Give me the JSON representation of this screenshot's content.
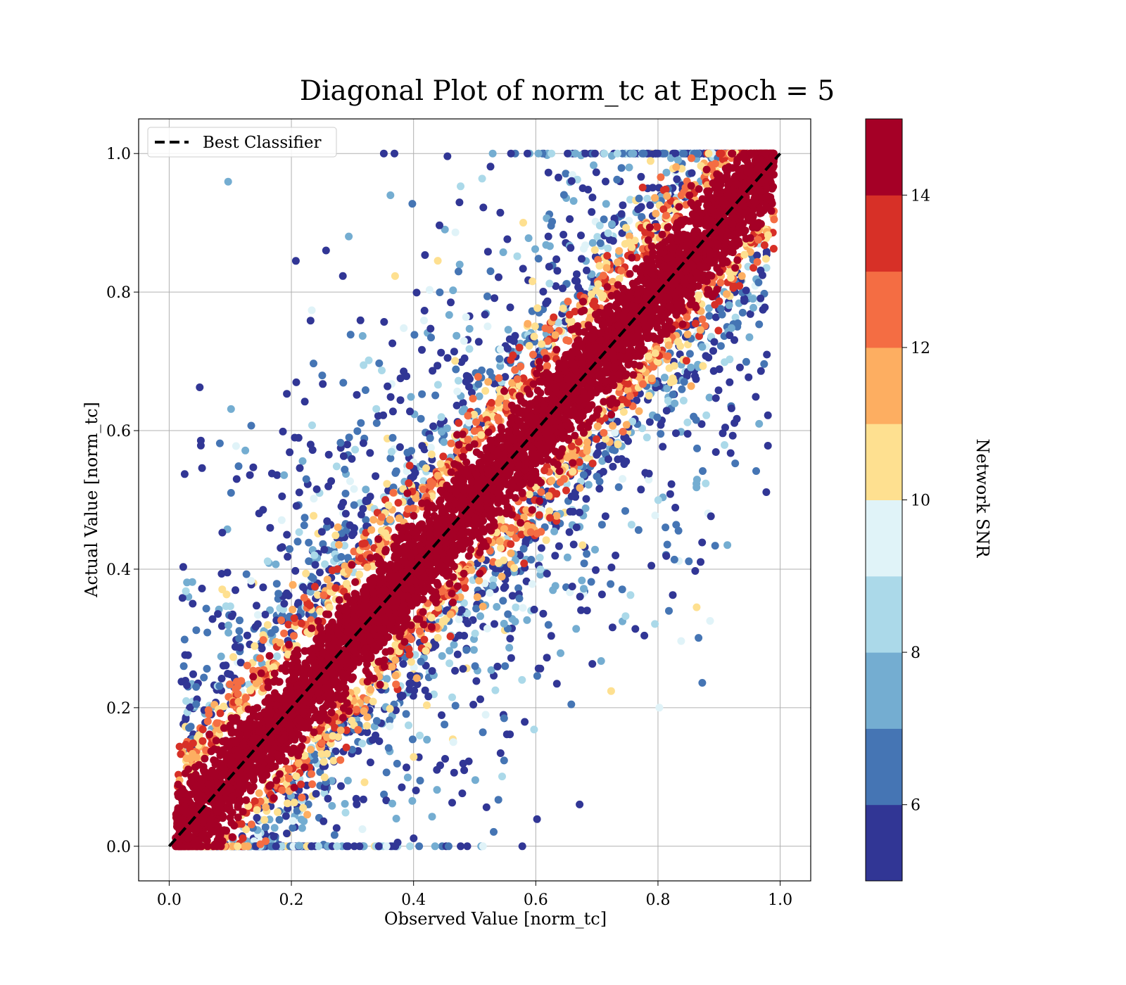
{
  "chart_data": {
    "type": "scatter",
    "title": "Diagonal Plot of norm_tc at Epoch = 5",
    "xlabel": "Observed Value [norm_tc]",
    "ylabel": "Actual Value [norm_tc]",
    "xlim": [
      -0.05,
      1.05
    ],
    "ylim": [
      -0.05,
      1.05
    ],
    "xticks": [
      "0.0",
      "0.2",
      "0.4",
      "0.6",
      "0.8",
      "1.0"
    ],
    "yticks": [
      "0.0",
      "0.2",
      "0.4",
      "0.6",
      "0.8",
      "1.0"
    ],
    "grid": true,
    "legend": {
      "placement": "upper-left",
      "entries": [
        "Best Classifier"
      ]
    },
    "reference_line": {
      "name": "Best Classifier",
      "style": "dashed",
      "color": "#000000",
      "x": [
        0,
        1
      ],
      "y": [
        0,
        1
      ]
    },
    "colorbar": {
      "label": "Network SNR",
      "range": [
        5,
        15
      ],
      "ticks": [
        "6",
        "8",
        "10",
        "12",
        "14"
      ],
      "colors": [
        "#313695",
        "#4575b4",
        "#74add1",
        "#abd9e9",
        "#e0f3f8",
        "#fee090",
        "#fdae61",
        "#f46d43",
        "#d73027",
        "#a50026"
      ]
    },
    "points_description_colors": {
      "high_snr": "#a50026"
    }
  }
}
